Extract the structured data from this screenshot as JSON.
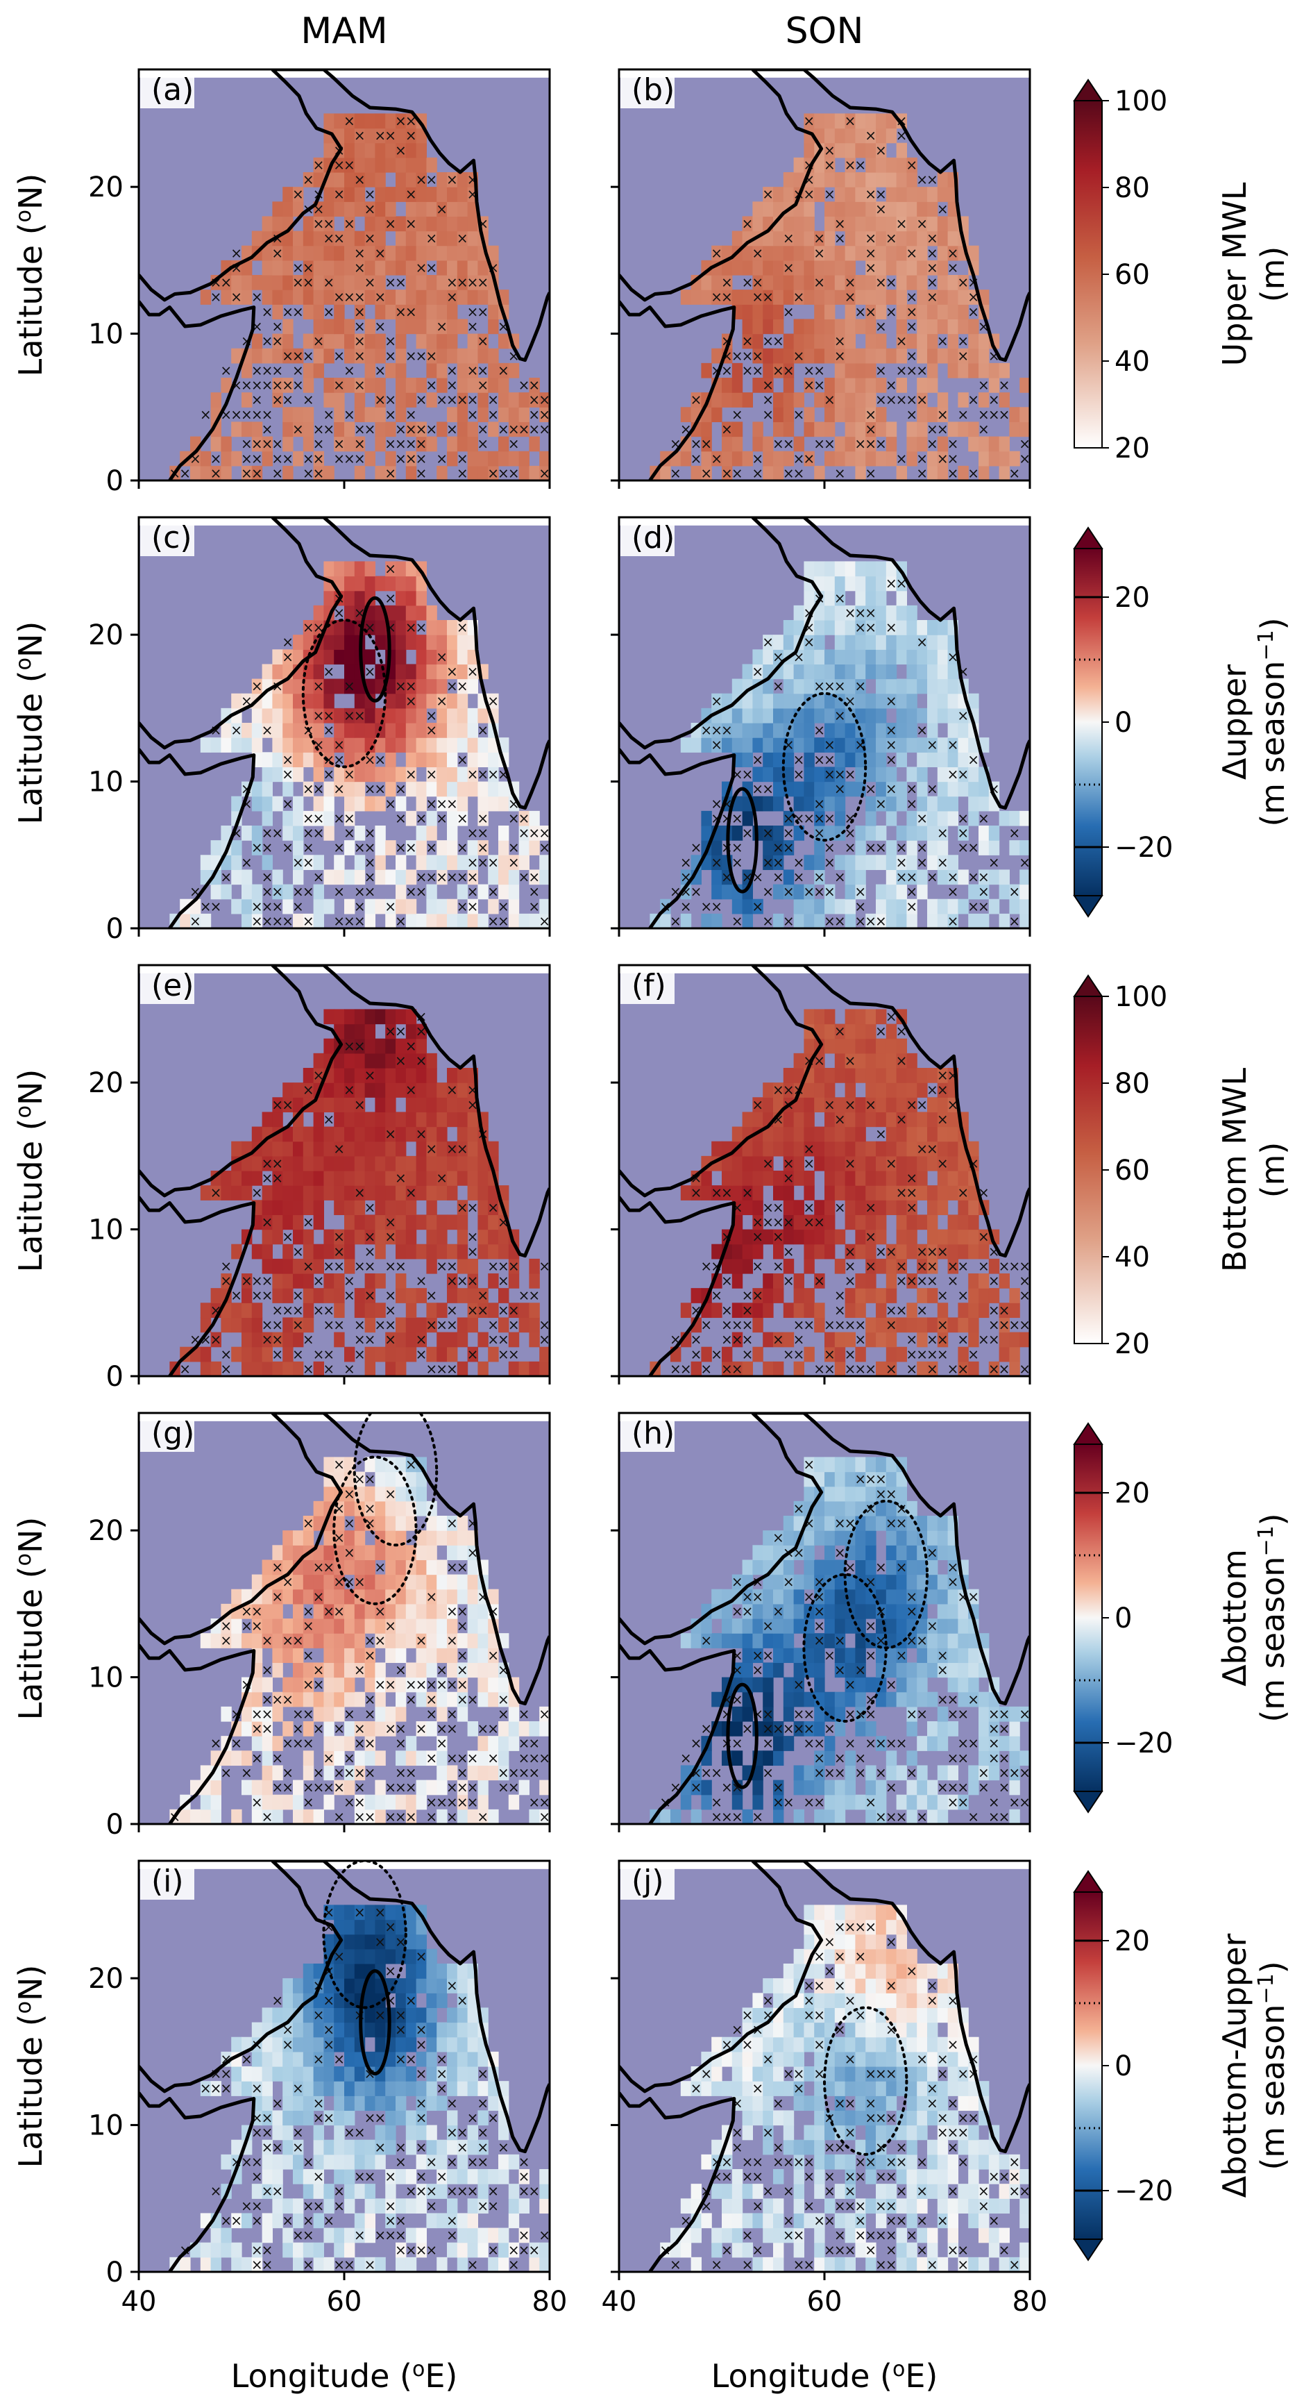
{
  "figure": {
    "column_titles": [
      "MAM",
      "SON"
    ],
    "x_axis_label": "Longitude (",
    "x_axis_label_sup": "o",
    "x_axis_label_end": "E)",
    "y_axis_label": "Latitude (",
    "y_axis_label_sup": "o",
    "y_axis_label_end": "N)",
    "x_ticks": [
      "40",
      "60",
      "80"
    ],
    "y_ticks": [
      "0",
      "10",
      "20"
    ]
  },
  "colorbars": [
    {
      "title_line1": "Upper MWL",
      "title_line2": "(m)",
      "ticks": [
        "20",
        "40",
        "60",
        "80",
        "100"
      ],
      "cmap": "sequential"
    },
    {
      "title_line1": "Δupper",
      "title_line2": "(m season",
      "title_sup": "−1",
      "title_end": ")",
      "ticks": [
        "−20",
        "0",
        "20"
      ],
      "cmap": "diverging"
    },
    {
      "title_line1": "Bottom MWL",
      "title_line2": "(m)",
      "ticks": [
        "20",
        "40",
        "60",
        "80",
        "100"
      ],
      "cmap": "sequential"
    },
    {
      "title_line1": "Δbottom",
      "title_line2": "(m season",
      "title_sup": "−1",
      "title_end": ")",
      "ticks": [
        "−20",
        "0",
        "20"
      ],
      "cmap": "diverging"
    },
    {
      "title_line1": "Δbottom-Δupper",
      "title_line2": "(m season",
      "title_sup": "−1",
      "title_end": ")",
      "ticks": [
        "−20",
        "0",
        "20"
      ],
      "cmap": "diverging"
    }
  ],
  "chart_data": {
    "type": "heatmap",
    "title": "",
    "xlabel": "Longitude (oE)",
    "ylabel": "Latitude (oN)",
    "xlim": [
      40,
      80
    ],
    "ylim": [
      0,
      28
    ],
    "land_color": "#8e8cbd",
    "panels": [
      {
        "label": "(a)",
        "season": "MAM",
        "variable": "Upper MWL",
        "units": "m",
        "range": [
          20,
          100
        ],
        "kind": "seq",
        "hotspots": [
          {
            "lon": 63,
            "lat": 23,
            "value": 62
          },
          {
            "lon": 55,
            "lat": 14,
            "value": 58
          },
          {
            "lon": 50,
            "lat": 6,
            "value": 52
          }
        ],
        "base": 55
      },
      {
        "label": "(b)",
        "season": "SON",
        "variable": "Upper MWL",
        "units": "m",
        "range": [
          20,
          100
        ],
        "kind": "seq",
        "hotspots": [
          {
            "lon": 55,
            "lat": 9,
            "value": 64
          },
          {
            "lon": 50,
            "lat": 5,
            "value": 58
          },
          {
            "lon": 65,
            "lat": 18,
            "value": 48
          }
        ],
        "base": 50
      },
      {
        "label": "(c)",
        "season": "MAM",
        "variable": "Δupper",
        "units": "m season−1",
        "range": [
          -28,
          28
        ],
        "kind": "div",
        "hotspots": [
          {
            "lon": 63,
            "lat": 19,
            "value": 24
          },
          {
            "lon": 60,
            "lat": 16,
            "value": 10
          },
          {
            "lon": 52,
            "lat": 6,
            "value": -6
          }
        ],
        "base": 0
      },
      {
        "label": "(d)",
        "season": "SON",
        "variable": "Δupper",
        "units": "m season−1",
        "range": [
          -28,
          28
        ],
        "kind": "div",
        "hotspots": [
          {
            "lon": 52,
            "lat": 6,
            "value": -24
          },
          {
            "lon": 60,
            "lat": 11,
            "value": -12
          },
          {
            "lon": 65,
            "lat": 14,
            "value": -8
          }
        ],
        "base": -3
      },
      {
        "label": "(e)",
        "season": "MAM",
        "variable": "Bottom MWL",
        "units": "m",
        "range": [
          20,
          100
        ],
        "kind": "seq",
        "hotspots": [
          {
            "lon": 63,
            "lat": 24,
            "value": 92
          },
          {
            "lon": 55,
            "lat": 12,
            "value": 80
          },
          {
            "lon": 48,
            "lat": 6,
            "value": 72
          }
        ],
        "base": 72
      },
      {
        "label": "(f)",
        "season": "SON",
        "variable": "Bottom MWL",
        "units": "m",
        "range": [
          20,
          100
        ],
        "kind": "seq",
        "hotspots": [
          {
            "lon": 50,
            "lat": 8,
            "value": 88
          },
          {
            "lon": 58,
            "lat": 12,
            "value": 78
          },
          {
            "lon": 64,
            "lat": 16,
            "value": 70
          }
        ],
        "base": 66
      },
      {
        "label": "(g)",
        "season": "MAM",
        "variable": "Δbottom",
        "units": "m season−1",
        "range": [
          -28,
          28
        ],
        "kind": "div",
        "hotspots": [
          {
            "lon": 63,
            "lat": 20,
            "value": 14
          },
          {
            "lon": 56,
            "lat": 14,
            "value": 8
          },
          {
            "lon": 65,
            "lat": 24,
            "value": -12
          }
        ],
        "base": 0
      },
      {
        "label": "(h)",
        "season": "SON",
        "variable": "Δbottom",
        "units": "m season−1",
        "range": [
          -28,
          28
        ],
        "kind": "div",
        "hotspots": [
          {
            "lon": 52,
            "lat": 6,
            "value": -28
          },
          {
            "lon": 62,
            "lat": 12,
            "value": -18
          },
          {
            "lon": 66,
            "lat": 17,
            "value": -12
          }
        ],
        "base": -5
      },
      {
        "label": "(i)",
        "season": "MAM",
        "variable": "Δbottom-Δupper",
        "units": "m season−1",
        "range": [
          -28,
          28
        ],
        "kind": "div",
        "hotspots": [
          {
            "lon": 63,
            "lat": 17,
            "value": -20
          },
          {
            "lon": 62,
            "lat": 23,
            "value": -16
          },
          {
            "lon": 55,
            "lat": 8,
            "value": -4
          }
        ],
        "base": -2
      },
      {
        "label": "(j)",
        "season": "SON",
        "variable": "Δbottom-Δupper",
        "units": "m season−1",
        "range": [
          -28,
          28
        ],
        "kind": "div",
        "hotspots": [
          {
            "lon": 64,
            "lat": 13,
            "value": -12
          },
          {
            "lon": 66,
            "lat": 20,
            "value": 6
          },
          {
            "lon": 55,
            "lat": 6,
            "value": -4
          }
        ],
        "base": -2
      }
    ]
  }
}
